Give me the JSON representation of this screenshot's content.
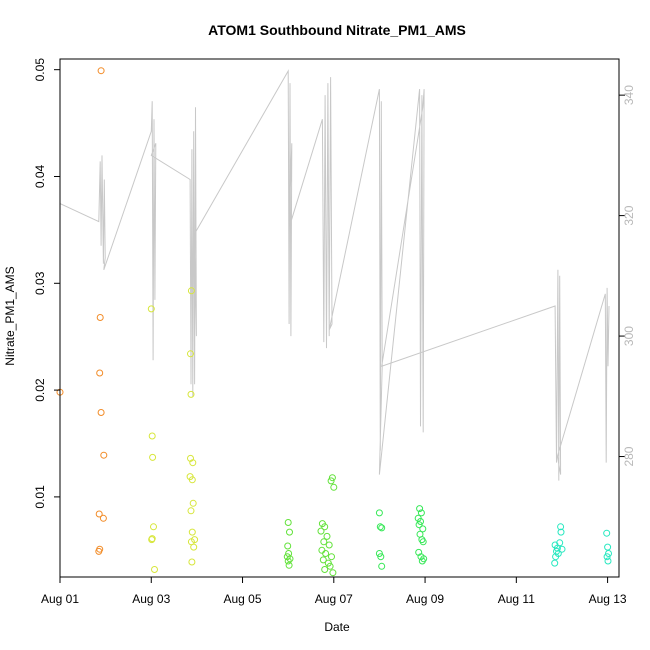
{
  "chart_data": {
    "type": "scatter",
    "title": "ATOM1 Southbound Nitrate_PM1_AMS",
    "xlabel": "Date",
    "ylabel": "Nitrate_PM1_AMS",
    "xlim": [
      0,
      12.25
    ],
    "ylim": [
      0.0025,
      0.051
    ],
    "y2lim": [
      260,
      346
    ],
    "x_ticks": [
      {
        "v": 0,
        "label": "Aug 01"
      },
      {
        "v": 2,
        "label": "Aug 03"
      },
      {
        "v": 4,
        "label": "Aug 05"
      },
      {
        "v": 6,
        "label": "Aug 07"
      },
      {
        "v": 8,
        "label": "Aug 09"
      },
      {
        "v": 10,
        "label": "Aug 11"
      },
      {
        "v": 12,
        "label": "Aug 13"
      }
    ],
    "y_ticks": [
      {
        "v": 0.01,
        "label": "0.01"
      },
      {
        "v": 0.02,
        "label": "0.02"
      },
      {
        "v": 0.03,
        "label": "0.03"
      },
      {
        "v": 0.04,
        "label": "0.04"
      },
      {
        "v": 0.05,
        "label": "0.05"
      }
    ],
    "y2_ticks": [
      {
        "v": 280,
        "label": "280"
      },
      {
        "v": 300,
        "label": "300"
      },
      {
        "v": 320,
        "label": "320"
      },
      {
        "v": 340,
        "label": "340"
      }
    ],
    "grid": false,
    "points": [
      {
        "x": 0.0,
        "y": 0.0198,
        "color": "#f28c28"
      },
      {
        "x": 0.9,
        "y": 0.0499,
        "color": "#f28c28"
      },
      {
        "x": 0.88,
        "y": 0.0268,
        "color": "#f28c28"
      },
      {
        "x": 0.87,
        "y": 0.0216,
        "color": "#f28c28"
      },
      {
        "x": 0.9,
        "y": 0.0179,
        "color": "#f28c28"
      },
      {
        "x": 0.96,
        "y": 0.0139,
        "color": "#f28c28"
      },
      {
        "x": 0.86,
        "y": 0.0084,
        "color": "#f28c28"
      },
      {
        "x": 0.95,
        "y": 0.008,
        "color": "#f28c28"
      },
      {
        "x": 0.87,
        "y": 0.0051,
        "color": "#f28c28"
      },
      {
        "x": 0.85,
        "y": 0.0049,
        "color": "#f28c28"
      },
      {
        "x": 2.0,
        "y": 0.0276,
        "color": "#d7e63b"
      },
      {
        "x": 2.02,
        "y": 0.0157,
        "color": "#d7e63b"
      },
      {
        "x": 2.03,
        "y": 0.0137,
        "color": "#d7e63b"
      },
      {
        "x": 2.05,
        "y": 0.0072,
        "color": "#d7e63b"
      },
      {
        "x": 2.02,
        "y": 0.0061,
        "color": "#d7e63b"
      },
      {
        "x": 2.01,
        "y": 0.006,
        "color": "#d7e63b"
      },
      {
        "x": 2.07,
        "y": 0.0032,
        "color": "#d7e63b"
      },
      {
        "x": 2.88,
        "y": 0.0293,
        "color": "#d7e63b"
      },
      {
        "x": 2.86,
        "y": 0.0234,
        "color": "#d7e63b"
      },
      {
        "x": 2.87,
        "y": 0.0196,
        "color": "#d7e63b"
      },
      {
        "x": 2.86,
        "y": 0.0136,
        "color": "#d7e63b"
      },
      {
        "x": 2.91,
        "y": 0.0132,
        "color": "#d7e63b"
      },
      {
        "x": 2.85,
        "y": 0.0119,
        "color": "#d7e63b"
      },
      {
        "x": 2.9,
        "y": 0.0116,
        "color": "#d7e63b"
      },
      {
        "x": 2.92,
        "y": 0.0094,
        "color": "#d7e63b"
      },
      {
        "x": 2.87,
        "y": 0.0087,
        "color": "#d7e63b"
      },
      {
        "x": 2.9,
        "y": 0.0067,
        "color": "#d7e63b"
      },
      {
        "x": 2.95,
        "y": 0.006,
        "color": "#d7e63b"
      },
      {
        "x": 2.88,
        "y": 0.0058,
        "color": "#d7e63b"
      },
      {
        "x": 2.93,
        "y": 0.0053,
        "color": "#d7e63b"
      },
      {
        "x": 2.89,
        "y": 0.0039,
        "color": "#d7e63b"
      },
      {
        "x": 5.0,
        "y": 0.0076,
        "color": "#62e23a"
      },
      {
        "x": 5.03,
        "y": 0.0067,
        "color": "#62e23a"
      },
      {
        "x": 4.99,
        "y": 0.0054,
        "color": "#62e23a"
      },
      {
        "x": 5.01,
        "y": 0.0047,
        "color": "#62e23a"
      },
      {
        "x": 4.98,
        "y": 0.0044,
        "color": "#62e23a"
      },
      {
        "x": 5.04,
        "y": 0.0042,
        "color": "#62e23a"
      },
      {
        "x": 5.0,
        "y": 0.004,
        "color": "#62e23a"
      },
      {
        "x": 5.02,
        "y": 0.0036,
        "color": "#62e23a"
      },
      {
        "x": 5.75,
        "y": 0.0075,
        "color": "#62e23a"
      },
      {
        "x": 5.8,
        "y": 0.0072,
        "color": "#62e23a"
      },
      {
        "x": 5.72,
        "y": 0.0068,
        "color": "#62e23a"
      },
      {
        "x": 5.85,
        "y": 0.0063,
        "color": "#62e23a"
      },
      {
        "x": 5.78,
        "y": 0.0058,
        "color": "#62e23a"
      },
      {
        "x": 5.9,
        "y": 0.0055,
        "color": "#62e23a"
      },
      {
        "x": 5.74,
        "y": 0.005,
        "color": "#62e23a"
      },
      {
        "x": 5.82,
        "y": 0.0047,
        "color": "#62e23a"
      },
      {
        "x": 5.95,
        "y": 0.0044,
        "color": "#62e23a"
      },
      {
        "x": 5.77,
        "y": 0.0041,
        "color": "#62e23a"
      },
      {
        "x": 5.88,
        "y": 0.0038,
        "color": "#62e23a"
      },
      {
        "x": 5.92,
        "y": 0.0035,
        "color": "#62e23a"
      },
      {
        "x": 5.8,
        "y": 0.0032,
        "color": "#62e23a"
      },
      {
        "x": 5.98,
        "y": 0.0029,
        "color": "#62e23a"
      },
      {
        "x": 5.94,
        "y": 0.0115,
        "color": "#62e23a"
      },
      {
        "x": 5.97,
        "y": 0.0118,
        "color": "#62e23a"
      },
      {
        "x": 6.0,
        "y": 0.0109,
        "color": "#62e23a"
      },
      {
        "x": 7.0,
        "y": 0.0085,
        "color": "#36e857"
      },
      {
        "x": 7.02,
        "y": 0.0072,
        "color": "#36e857"
      },
      {
        "x": 7.05,
        "y": 0.0071,
        "color": "#36e857"
      },
      {
        "x": 7.0,
        "y": 0.0047,
        "color": "#36e857"
      },
      {
        "x": 7.03,
        "y": 0.0044,
        "color": "#36e857"
      },
      {
        "x": 7.05,
        "y": 0.0035,
        "color": "#36e857"
      },
      {
        "x": 7.88,
        "y": 0.0089,
        "color": "#36e857"
      },
      {
        "x": 7.92,
        "y": 0.0085,
        "color": "#36e857"
      },
      {
        "x": 7.85,
        "y": 0.008,
        "color": "#36e857"
      },
      {
        "x": 7.9,
        "y": 0.0077,
        "color": "#36e857"
      },
      {
        "x": 7.87,
        "y": 0.0074,
        "color": "#36e857"
      },
      {
        "x": 7.95,
        "y": 0.007,
        "color": "#36e857"
      },
      {
        "x": 7.89,
        "y": 0.0065,
        "color": "#36e857"
      },
      {
        "x": 7.93,
        "y": 0.006,
        "color": "#36e857"
      },
      {
        "x": 7.96,
        "y": 0.0058,
        "color": "#36e857"
      },
      {
        "x": 7.86,
        "y": 0.0048,
        "color": "#36e857"
      },
      {
        "x": 7.91,
        "y": 0.0044,
        "color": "#36e857"
      },
      {
        "x": 7.97,
        "y": 0.0042,
        "color": "#36e857"
      },
      {
        "x": 7.94,
        "y": 0.004,
        "color": "#36e857"
      },
      {
        "x": 10.85,
        "y": 0.0055,
        "color": "#27e8c0"
      },
      {
        "x": 10.9,
        "y": 0.0052,
        "color": "#27e8c0"
      },
      {
        "x": 10.88,
        "y": 0.0049,
        "color": "#27e8c0"
      },
      {
        "x": 10.92,
        "y": 0.0047,
        "color": "#27e8c0"
      },
      {
        "x": 10.86,
        "y": 0.0044,
        "color": "#27e8c0"
      },
      {
        "x": 10.84,
        "y": 0.0038,
        "color": "#27e8c0"
      },
      {
        "x": 10.95,
        "y": 0.0057,
        "color": "#27e8c0"
      },
      {
        "x": 10.97,
        "y": 0.0072,
        "color": "#27e8c0"
      },
      {
        "x": 10.98,
        "y": 0.0067,
        "color": "#27e8c0"
      },
      {
        "x": 11.0,
        "y": 0.0051,
        "color": "#27e8c0"
      },
      {
        "x": 11.98,
        "y": 0.0066,
        "color": "#27e8c0"
      },
      {
        "x": 12.0,
        "y": 0.0053,
        "color": "#27e8c0"
      },
      {
        "x": 12.02,
        "y": 0.0047,
        "color": "#27e8c0"
      },
      {
        "x": 11.99,
        "y": 0.0044,
        "color": "#27e8c0"
      },
      {
        "x": 12.01,
        "y": 0.004,
        "color": "#27e8c0"
      }
    ],
    "line_series": {
      "axis": "right",
      "color": "#c8c8c8",
      "points": [
        [
          0.0,
          322
        ],
        [
          0.85,
          319
        ],
        [
          0.88,
          329
        ],
        [
          0.9,
          315
        ],
        [
          0.92,
          330
        ],
        [
          0.95,
          312
        ],
        [
          0.97,
          326
        ],
        [
          0.99,
          313
        ],
        [
          0.96,
          311
        ],
        [
          2.0,
          334
        ],
        [
          2.02,
          339
        ],
        [
          2.04,
          296
        ],
        [
          2.06,
          336
        ],
        [
          2.08,
          306
        ],
        [
          2.1,
          332
        ],
        [
          2.0,
          330
        ],
        [
          2.85,
          326
        ],
        [
          2.87,
          292
        ],
        [
          2.89,
          331
        ],
        [
          2.91,
          290
        ],
        [
          2.93,
          334
        ],
        [
          2.95,
          292
        ],
        [
          2.97,
          338
        ],
        [
          2.99,
          300
        ],
        [
          2.95,
          317
        ],
        [
          5.0,
          344
        ],
        [
          5.02,
          302
        ],
        [
          5.04,
          342
        ],
        [
          5.06,
          300
        ],
        [
          5.08,
          332
        ],
        [
          5.02,
          318
        ],
        [
          5.75,
          336
        ],
        [
          5.78,
          299
        ],
        [
          5.81,
          340
        ],
        [
          5.84,
          298
        ],
        [
          5.87,
          342
        ],
        [
          5.9,
          300
        ],
        [
          5.93,
          343
        ],
        [
          5.96,
          302
        ],
        [
          5.9,
          301
        ],
        [
          7.0,
          341
        ],
        [
          7.02,
          281
        ],
        [
          7.04,
          339
        ],
        [
          7.06,
          295
        ],
        [
          7.0,
          277
        ],
        [
          7.88,
          341
        ],
        [
          7.9,
          285
        ],
        [
          7.93,
          340
        ],
        [
          7.96,
          284
        ],
        [
          7.98,
          341
        ],
        [
          7.95,
          338
        ],
        [
          7.05,
          295
        ],
        [
          10.85,
          305
        ],
        [
          10.88,
          279
        ],
        [
          10.91,
          311
        ],
        [
          10.93,
          276
        ],
        [
          10.95,
          310
        ],
        [
          10.97,
          277
        ],
        [
          10.9,
          280
        ],
        [
          11.95,
          307
        ],
        [
          11.97,
          279
        ],
        [
          11.99,
          308
        ],
        [
          12.01,
          295
        ],
        [
          12.03,
          305
        ]
      ]
    }
  }
}
